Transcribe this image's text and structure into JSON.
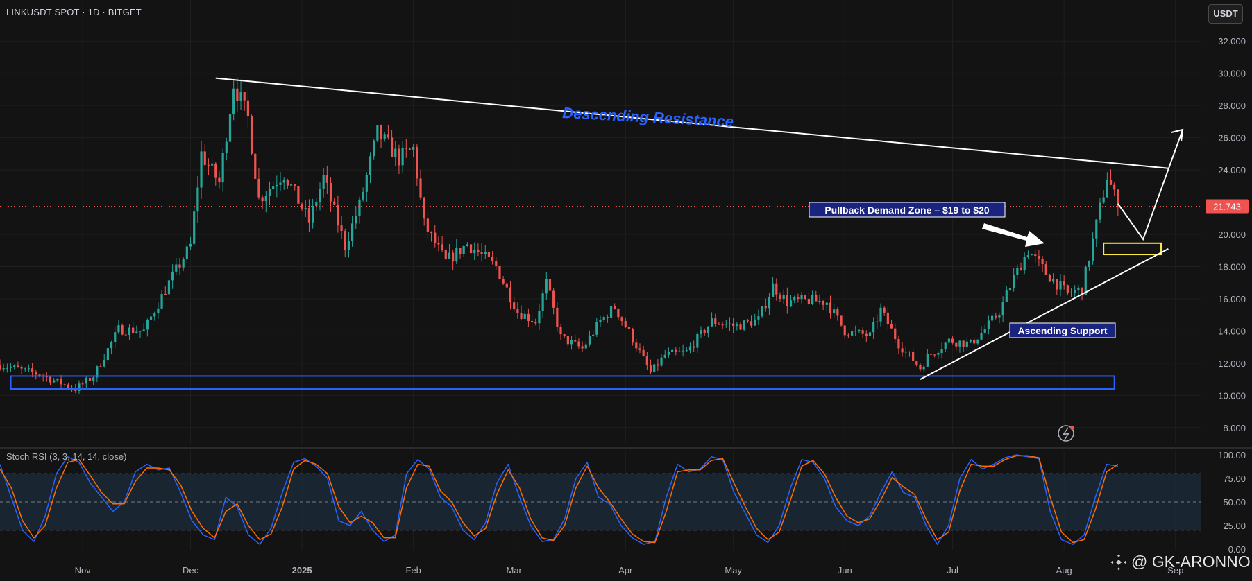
{
  "header": {
    "symbol_line": "LINKUSDT SPOT · 1D · BITGET",
    "currency_button": "USDT"
  },
  "indicator": {
    "label": "Stoch RSI (3, 3, 14, 14, close)"
  },
  "watermark": {
    "text": "@ GK-ARONNO",
    "icon": "binance-logo-icon"
  },
  "colors": {
    "background": "#131313",
    "up": "#26a69a",
    "down": "#ef5350",
    "stoch_k": "#2962ff",
    "stoch_d": "#ff6d00",
    "support_box": "#2962ff",
    "demand_box": "#ffeb3b",
    "annotation_blue": "#2962ff",
    "label_bg": "#1a237e"
  },
  "chart_data": [
    {
      "type": "candlestick",
      "symbol": "LINKUSDT",
      "timeframe": "1D",
      "exchange": "BITGET",
      "ylim": [
        7,
        33
      ],
      "y_ticks": [
        8,
        10,
        12,
        14,
        16,
        18,
        20,
        22,
        24,
        26,
        28,
        30,
        32
      ],
      "y_tick_labels": [
        "8.000",
        "10.000",
        "12.000",
        "14.000",
        "16.000",
        "18.000",
        "20.000",
        "22.000",
        "24.000",
        "26.000",
        "28.000",
        "30.000",
        "32.000"
      ],
      "x_ticks": [
        {
          "date": "2024-11-01",
          "label": "Nov"
        },
        {
          "date": "2024-12-01",
          "label": "Dec"
        },
        {
          "date": "2025-01-01",
          "label": "2025"
        },
        {
          "date": "2025-02-01",
          "label": "Feb"
        },
        {
          "date": "2025-03-01",
          "label": "Mar"
        },
        {
          "date": "2025-04-01",
          "label": "Apr"
        },
        {
          "date": "2025-05-01",
          "label": "May"
        },
        {
          "date": "2025-06-01",
          "label": "Jun"
        },
        {
          "date": "2025-07-01",
          "label": "Jul"
        },
        {
          "date": "2025-08-01",
          "label": "Aug"
        },
        {
          "date": "2025-09-01",
          "label": "Sep"
        }
      ],
      "x_range": [
        "2024-10-09",
        "2025-09-08"
      ],
      "last_price": 21.743,
      "last_price_label": "21.743",
      "price_path": [
        {
          "date": "2024-10-09",
          "close": 11.9
        },
        {
          "date": "2024-10-20",
          "close": 11.3
        },
        {
          "date": "2024-10-30",
          "close": 10.4
        },
        {
          "date": "2024-11-04",
          "close": 11.2
        },
        {
          "date": "2024-11-11",
          "close": 14.1
        },
        {
          "date": "2024-11-18",
          "close": 14.0
        },
        {
          "date": "2024-11-25",
          "close": 17.0
        },
        {
          "date": "2024-12-01",
          "close": 19.3
        },
        {
          "date": "2024-12-04",
          "close": 25.0
        },
        {
          "date": "2024-12-09",
          "close": 23.2
        },
        {
          "date": "2024-12-13",
          "close": 29.4
        },
        {
          "date": "2024-12-17",
          "close": 27.2
        },
        {
          "date": "2024-12-20",
          "close": 22.2
        },
        {
          "date": "2024-12-27",
          "close": 23.8
        },
        {
          "date": "2025-01-03",
          "close": 20.8
        },
        {
          "date": "2025-01-07",
          "close": 23.5
        },
        {
          "date": "2025-01-13",
          "close": 19.3
        },
        {
          "date": "2025-01-17",
          "close": 21.8
        },
        {
          "date": "2025-01-22",
          "close": 26.3
        },
        {
          "date": "2025-01-28",
          "close": 24.7
        },
        {
          "date": "2025-02-01",
          "close": 25.3
        },
        {
          "date": "2025-02-04",
          "close": 20.6
        },
        {
          "date": "2025-02-10",
          "close": 18.3
        },
        {
          "date": "2025-02-16",
          "close": 19.4
        },
        {
          "date": "2025-02-24",
          "close": 18.0
        },
        {
          "date": "2025-03-02",
          "close": 15.2
        },
        {
          "date": "2025-03-07",
          "close": 14.6
        },
        {
          "date": "2025-03-10",
          "close": 17.0
        },
        {
          "date": "2025-03-14",
          "close": 13.6
        },
        {
          "date": "2025-03-20",
          "close": 12.9
        },
        {
          "date": "2025-03-25",
          "close": 14.6
        },
        {
          "date": "2025-03-29",
          "close": 15.5
        },
        {
          "date": "2025-04-04",
          "close": 13.1
        },
        {
          "date": "2025-04-08",
          "close": 11.4
        },
        {
          "date": "2025-04-12",
          "close": 12.5
        },
        {
          "date": "2025-04-18",
          "close": 12.7
        },
        {
          "date": "2025-04-25",
          "close": 14.6
        },
        {
          "date": "2025-05-02",
          "close": 14.3
        },
        {
          "date": "2025-05-08",
          "close": 14.7
        },
        {
          "date": "2025-05-12",
          "close": 16.8
        },
        {
          "date": "2025-05-16",
          "close": 15.8
        },
        {
          "date": "2025-05-22",
          "close": 15.9
        },
        {
          "date": "2025-05-27",
          "close": 15.8
        },
        {
          "date": "2025-06-01",
          "close": 14.0
        },
        {
          "date": "2025-06-08",
          "close": 13.7
        },
        {
          "date": "2025-06-11",
          "close": 15.3
        },
        {
          "date": "2025-06-16",
          "close": 13.2
        },
        {
          "date": "2025-06-22",
          "close": 11.7
        },
        {
          "date": "2025-06-24",
          "close": 12.4
        },
        {
          "date": "2025-06-30",
          "close": 13.4
        },
        {
          "date": "2025-07-06",
          "close": 13.2
        },
        {
          "date": "2025-07-10",
          "close": 14.1
        },
        {
          "date": "2025-07-14",
          "close": 15.2
        },
        {
          "date": "2025-07-18",
          "close": 17.3
        },
        {
          "date": "2025-07-22",
          "close": 19.0
        },
        {
          "date": "2025-07-27",
          "close": 17.6
        },
        {
          "date": "2025-08-02",
          "close": 16.3
        },
        {
          "date": "2025-08-06",
          "close": 16.6
        },
        {
          "date": "2025-08-10",
          "close": 20.6
        },
        {
          "date": "2025-08-13",
          "close": 23.6
        },
        {
          "date": "2025-08-14",
          "close": 23.0
        },
        {
          "date": "2025-08-16",
          "close": 21.743
        }
      ]
    },
    {
      "type": "line",
      "title": "Stoch RSI (3, 3, 14, 14, close)",
      "ylim": [
        0,
        100
      ],
      "y_ticks": [
        0,
        25,
        50,
        75,
        100
      ],
      "y_tick_labels": [
        "0.00",
        "25.00",
        "50.00",
        "75.00",
        "100.00"
      ],
      "band": [
        20,
        80
      ],
      "series": [
        {
          "values": [
            90,
            55,
            20,
            8,
            35,
            80,
            98,
            92,
            70,
            55,
            40,
            50,
            82,
            90,
            84,
            86,
            60,
            30,
            15,
            10,
            55,
            45,
            15,
            5,
            22,
            60,
            92,
            96,
            88,
            75,
            30,
            25,
            40,
            20,
            8,
            15,
            80,
            95,
            85,
            55,
            45,
            20,
            10,
            28,
            70,
            90,
            55,
            25,
            8,
            10,
            32,
            75,
            92,
            55,
            48,
            25,
            12,
            5,
            8,
            55,
            90,
            82,
            85,
            98,
            95,
            60,
            38,
            15,
            7,
            25,
            65,
            95,
            92,
            75,
            45,
            30,
            25,
            35,
            60,
            82,
            60,
            55,
            25,
            5,
            25,
            75,
            95,
            85,
            90,
            97,
            100,
            98,
            96,
            40,
            10,
            5,
            15,
            55,
            90,
            88
          ]
        },
        {
          "values": [
            85,
            65,
            30,
            12,
            25,
            65,
            92,
            95,
            78,
            60,
            48,
            48,
            72,
            86,
            86,
            84,
            68,
            40,
            22,
            12,
            40,
            48,
            25,
            10,
            16,
            45,
            85,
            94,
            90,
            80,
            45,
            28,
            35,
            28,
            12,
            12,
            65,
            90,
            88,
            62,
            50,
            28,
            14,
            22,
            58,
            84,
            65,
            32,
            12,
            9,
            25,
            65,
            88,
            65,
            50,
            32,
            16,
            8,
            7,
            40,
            82,
            84,
            84,
            94,
            96,
            70,
            45,
            22,
            10,
            18,
            52,
            88,
            94,
            80,
            55,
            35,
            28,
            32,
            52,
            76,
            66,
            58,
            32,
            10,
            18,
            62,
            90,
            88,
            88,
            95,
            99,
            99,
            97,
            55,
            18,
            7,
            10,
            42,
            82,
            90
          ]
        }
      ]
    }
  ],
  "annotations": {
    "resistance_label": "Descending Resistance",
    "demand_label": "Pullback Demand Zone – $19 to $20",
    "support_label": "Ascending Support",
    "resistance_line": {
      "from": {
        "date": "2024-12-08",
        "price": 29.7
      },
      "to": {
        "date": "2025-08-30",
        "price": 24.1
      }
    },
    "support_line": {
      "from": {
        "date": "2025-06-22",
        "price": 11.0
      },
      "to": {
        "date": "2025-08-30",
        "price": 19.1
      }
    },
    "support_zone": {
      "from": "2024-10-12",
      "to": "2025-08-15",
      "low": 10.4,
      "high": 11.2
    },
    "demand_zone": {
      "from": "2025-08-12",
      "to": "2025-08-28",
      "low": 18.75,
      "high": 19.45
    },
    "projection": [
      {
        "date": "2025-08-16",
        "price": 21.9
      },
      {
        "date": "2025-08-23",
        "price": 19.7
      },
      {
        "date": "2025-09-03",
        "price": 26.5
      }
    ]
  }
}
